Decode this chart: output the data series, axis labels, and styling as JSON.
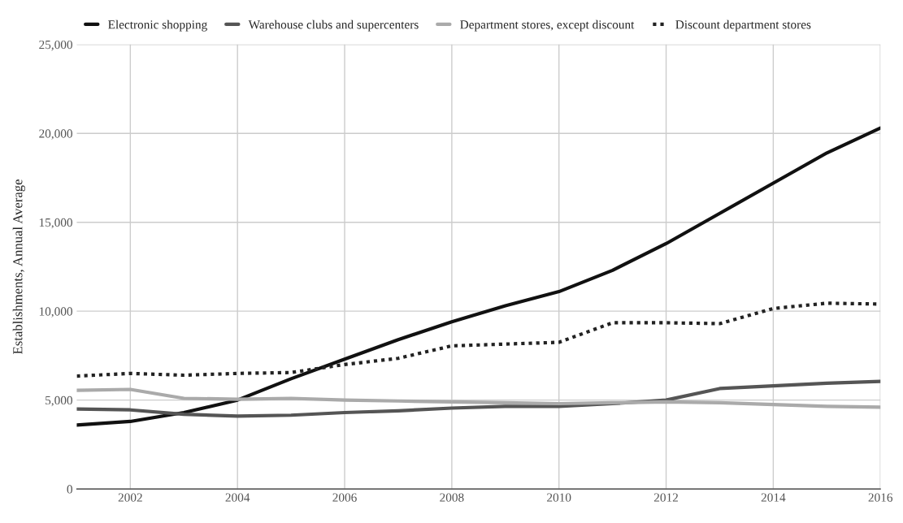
{
  "chart_data": {
    "type": "line",
    "ylabel": "Establishments, Annual Average",
    "x": [
      2001,
      2002,
      2003,
      2004,
      2005,
      2006,
      2007,
      2008,
      2009,
      2010,
      2011,
      2012,
      2013,
      2014,
      2015,
      2016
    ],
    "series": [
      {
        "name": "Electronic shopping",
        "color": "#111111",
        "line_style": "solid",
        "values": [
          3600,
          3800,
          4300,
          5000,
          6200,
          7300,
          8400,
          9400,
          10300,
          11100,
          12300,
          13800,
          15500,
          17200,
          18900,
          20300
        ]
      },
      {
        "name": "Warehouse clubs and supercenters",
        "color": "#555555",
        "line_style": "solid",
        "values": [
          4500,
          4450,
          4200,
          4100,
          4150,
          4300,
          4400,
          4550,
          4650,
          4650,
          4800,
          5000,
          5650,
          5800,
          5950,
          6050
        ]
      },
      {
        "name": "Department stores, except discount",
        "color": "#aaaaaa",
        "line_style": "solid",
        "values": [
          5550,
          5600,
          5100,
          5050,
          5100,
          5000,
          4950,
          4900,
          4850,
          4800,
          4850,
          4900,
          4850,
          4750,
          4650,
          4600
        ]
      },
      {
        "name": "Discount department stores",
        "color": "#222222",
        "line_style": "dotted",
        "values": [
          6350,
          6500,
          6400,
          6500,
          6550,
          7000,
          7350,
          8050,
          8150,
          8250,
          9350,
          9350,
          9300,
          10150,
          10450,
          10400
        ]
      }
    ],
    "xlim": [
      2001,
      2016
    ],
    "xticks": [
      2002,
      2004,
      2006,
      2008,
      2010,
      2012,
      2014,
      2016
    ],
    "ylim": [
      0,
      25000
    ],
    "yticks": [
      {
        "value": 0,
        "label": "0"
      },
      {
        "value": 5000,
        "label": "5,000"
      },
      {
        "value": 10000,
        "label": "10,000"
      },
      {
        "value": 15000,
        "label": "15,000"
      },
      {
        "value": 20000,
        "label": "20,000"
      },
      {
        "value": 25000,
        "label": "25,000"
      }
    ],
    "grid": true,
    "legend": "top left",
    "marker": "none"
  }
}
